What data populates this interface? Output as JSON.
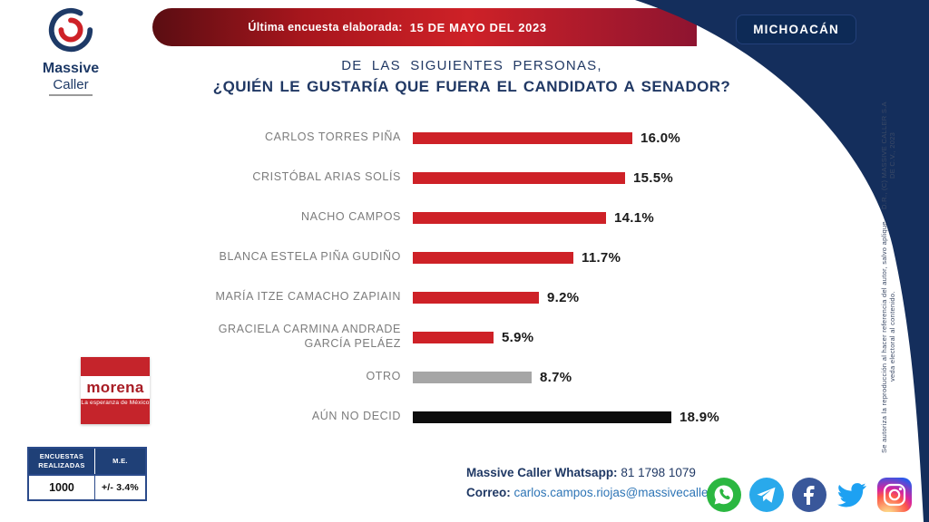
{
  "logo": {
    "brand_line1": "Massive",
    "brand_line2": "Caller"
  },
  "top_banner": {
    "label": "Última encuesta elaborada:",
    "date": "15 DE MAYO DEL 2023"
  },
  "region_badge": "MICHOACÁN",
  "question": {
    "line1": "DE LAS SIGUIENTES PERSONAS,",
    "line2": "¿QUIÉN LE GUSTARÍA QUE FUERA EL CANDIDATO A SENADOR?"
  },
  "chart_data": {
    "type": "bar",
    "orientation": "horizontal",
    "title": "¿Quién le gustaría que fuera el candidato a senador? (Michoacán)",
    "categories": [
      "CARLOS TORRES PIÑA",
      "CRISTÓBAL ARIAS SOLÍS",
      "NACHO CAMPOS",
      "BLANCA ESTELA PIÑA GUDIÑO",
      "MARÍA ITZE CAMACHO ZAPIAIN",
      "GRACIELA CARMINA ANDRADE GARCÍA PELÁEZ",
      "OTRO",
      "AÚN NO DECID"
    ],
    "values": [
      16.0,
      15.5,
      14.1,
      11.7,
      9.2,
      5.9,
      8.7,
      18.9
    ],
    "value_labels": [
      "16.0%",
      "15.5%",
      "14.1%",
      "11.7%",
      "9.2%",
      "5.9%",
      "8.7%",
      "18.9%"
    ],
    "colors": [
      "#ce2127",
      "#ce2127",
      "#ce2127",
      "#ce2127",
      "#ce2127",
      "#ce2127",
      "#a6a6a6",
      "#0d0d0d"
    ],
    "xlim": [
      0,
      20
    ],
    "grid": false,
    "legend": false
  },
  "party_logo": {
    "wordmark": "morena",
    "tagline": "La esperanza de México"
  },
  "stats_table": {
    "col1_header": "ENCUESTAS REALIZADAS",
    "col2_header": "M.E.",
    "col1_value": "1000",
    "col2_value": "+/- 3.4%"
  },
  "contact": {
    "whatsapp_label": "Massive Caller Whatsapp:",
    "whatsapp_number": "81 1798 1079",
    "email_label": "Correo:",
    "email": "carlos.campos.riojas@massivecaller.com"
  },
  "social_icons": [
    "whatsapp",
    "telegram",
    "facebook",
    "twitter",
    "instagram"
  ],
  "copyright": {
    "line1": "D.R., (C) MASSIVE CALLER S.A DE C.V., 2023",
    "line2": "Se autoriza la reproducción al hacer referencia del autor, salvo aplique veda electoral al contenido."
  },
  "colors": {
    "navy": "#142e5c",
    "red": "#ce2127",
    "gray_bar": "#a6a6a6",
    "black_bar": "#0d0d0d",
    "title_navy": "#203864",
    "email_blue": "#2e75b6",
    "morena_red": "#c5242b"
  }
}
